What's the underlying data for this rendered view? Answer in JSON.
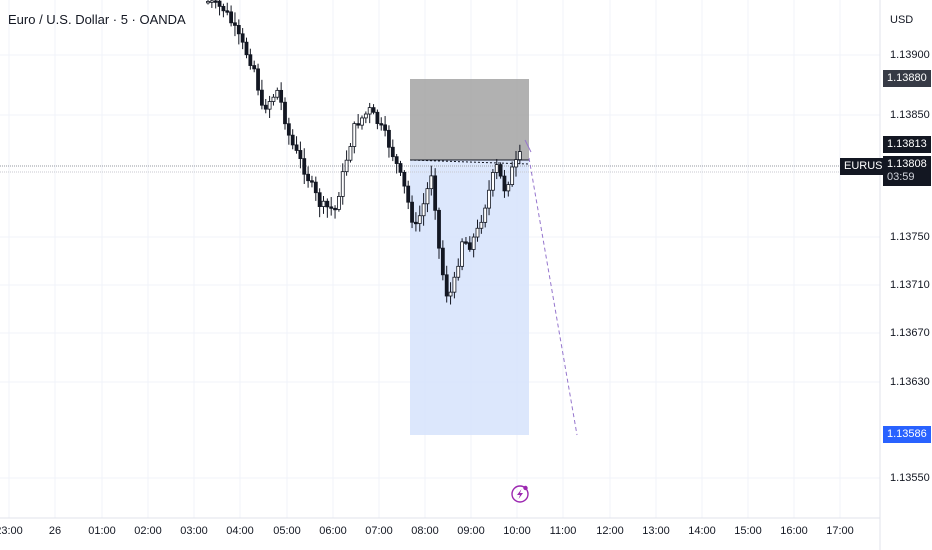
{
  "header": {
    "symbol_title": "Euro / U.S. Dollar · 5 · OANDA"
  },
  "price_axis": {
    "currency": "USD",
    "labels": [
      "1.13900",
      "1.13850",
      "1.13750",
      "1.13710",
      "1.13670",
      "1.13630",
      "1.13550"
    ]
  },
  "time_axis": {
    "labels": [
      "23:00",
      "26",
      "01:00",
      "02:00",
      "03:00",
      "04:00",
      "05:00",
      "06:00",
      "07:00",
      "08:00",
      "09:00",
      "10:00",
      "11:00",
      "12:00",
      "13:00",
      "14:00",
      "15:00",
      "16:00",
      "17:00"
    ]
  },
  "price_badges": {
    "stop_level": "1.13880",
    "high_marker": "1.13813",
    "symbol_tag": "EURUSD",
    "current_price": "1.13808",
    "countdown": "03:59",
    "target_level": "1.13586"
  },
  "colors": {
    "bullish": "#ffffff",
    "bearish": "#131722",
    "stop_zone": "#9e9e9e",
    "target_zone": "#d6e3fc",
    "target_badge": "#2962ff",
    "axis_text": "#131722"
  },
  "icons": {
    "lightning_event": "lightning-icon"
  }
}
